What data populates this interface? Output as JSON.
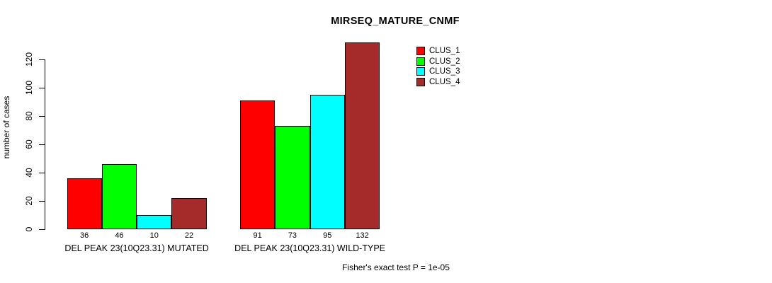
{
  "chart_data": {
    "type": "bar",
    "title": "MIRSEQ_MATURE_CNMF",
    "ylabel": "number of cases",
    "xlabel": "",
    "yticks": [
      0,
      20,
      40,
      60,
      80,
      100,
      120
    ],
    "ylim": [
      0,
      133
    ],
    "grid": false,
    "legend_position": "top-right-inside",
    "bar_value_labels_shown": true,
    "categories": [
      "DEL PEAK 23(10Q23.31) MUTATED",
      "DEL PEAK 23(10Q23.31) WILD-TYPE"
    ],
    "series": [
      {
        "name": "CLUS_1",
        "color": "#FF0000",
        "values": [
          36,
          91
        ]
      },
      {
        "name": "CLUS_2",
        "color": "#00FF00",
        "values": [
          46,
          73
        ]
      },
      {
        "name": "CLUS_3",
        "color": "#00FFFF",
        "values": [
          10,
          95
        ]
      },
      {
        "name": "CLUS_4",
        "color": "#A52A2A",
        "values": [
          22,
          132
        ]
      }
    ],
    "footnote": "Fisher's exact test P = 1e-05",
    "text_color": "#000000",
    "background_color": "#FFFFFF"
  }
}
